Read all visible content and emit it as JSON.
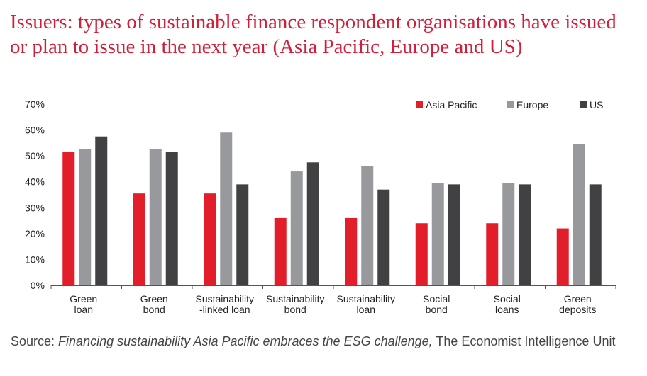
{
  "title": "Issuers: types of sustainable finance respondent organisations have issued or plan to issue in the next year (Asia Pacific, Europe and US)",
  "source": {
    "prefix": "Source: ",
    "italic": "Financing sustainability Asia Pacific embraces the ESG challenge,",
    "suffix": " The Economist Intelligence Unit"
  },
  "chart_data": {
    "type": "bar",
    "title": "",
    "xlabel": "",
    "ylabel": "",
    "ylim": [
      0,
      70
    ],
    "yticks": [
      "0%",
      "10%",
      "20%",
      "30%",
      "40%",
      "50%",
      "60%",
      "70%"
    ],
    "legend_position": "top-right",
    "grid": false,
    "categories": [
      [
        "Green",
        "loan"
      ],
      [
        "Green",
        "bond"
      ],
      [
        "Sustainability",
        "-linked loan"
      ],
      [
        "Sustainability",
        "bond"
      ],
      [
        "Sustainability",
        "loan"
      ],
      [
        "Social",
        "bond"
      ],
      [
        "Social",
        "loans"
      ],
      [
        "Green",
        "deposits"
      ]
    ],
    "series": [
      {
        "name": "Asia Pacific",
        "color": "#e31e2b",
        "values": [
          51.5,
          35.5,
          35.5,
          26,
          26,
          24,
          24,
          22
        ]
      },
      {
        "name": "Europe",
        "color": "#97999c",
        "values": [
          52.5,
          52.5,
          59,
          44,
          46,
          39.5,
          39.5,
          54.5
        ]
      },
      {
        "name": "US",
        "color": "#414143",
        "values": [
          57.5,
          51.5,
          39,
          47.5,
          37,
          39,
          39,
          39
        ]
      }
    ]
  }
}
